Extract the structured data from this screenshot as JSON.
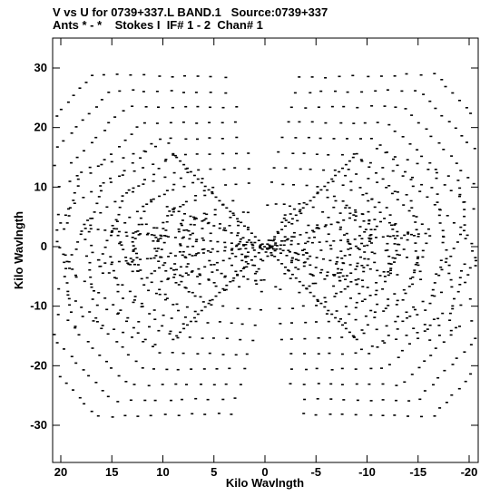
{
  "title_line1": "V vs U for 0739+337.L BAND.1   Source:0739+337",
  "title_line2": "Ants * - *    Stokes I  IF# 1 - 2  Chan# 1",
  "chart_data": {
    "type": "scatter",
    "xlabel": "Kilo Wavlngth",
    "ylabel": "Kilo Wavlngth",
    "xlim": [
      21,
      -21
    ],
    "ylim": [
      -37,
      37
    ],
    "x_reversed": true,
    "xticks": [
      20,
      15,
      10,
      5,
      0,
      -5,
      -10,
      -15,
      -20
    ],
    "yticks": [
      -30,
      -20,
      -10,
      0,
      10,
      20,
      30
    ],
    "grid": false,
    "marker_color": "#000000",
    "arms": [
      {
        "angle_deg": 120,
        "r_max": 33.5,
        "n_tracks": 8,
        "spread": 4.0
      },
      {
        "angle_deg": 60,
        "r_max": 33.5,
        "n_tracks": 8,
        "spread": 4.0
      },
      {
        "angle_deg": 172,
        "r_max": 29.0,
        "n_tracks": 7,
        "spread": 4.5
      },
      {
        "angle_deg": 10,
        "r_max": 32.0,
        "n_tracks": 7,
        "spread": 4.5
      },
      {
        "angle_deg": 150,
        "r_max": 22.0,
        "n_tracks": 6,
        "spread": 3.5
      },
      {
        "angle_deg": 35,
        "r_max": 22.0,
        "n_tracks": 6,
        "spread": 3.5
      },
      {
        "angle_deg": 200,
        "r_max": 26.0,
        "n_tracks": 6,
        "spread": 4.0
      },
      {
        "angle_deg": 300,
        "r_max": 33.0,
        "n_tracks": 8,
        "spread": 4.0
      },
      {
        "angle_deg": 240,
        "r_max": 33.0,
        "n_tracks": 8,
        "spread": 4.0
      },
      {
        "angle_deg": 350,
        "r_max": 29.0,
        "n_tracks": 7,
        "spread": 4.5
      },
      {
        "angle_deg": 330,
        "r_max": 22.0,
        "n_tracks": 6,
        "spread": 3.5
      },
      {
        "angle_deg": 215,
        "r_max": 22.0,
        "n_tracks": 6,
        "spread": 3.5
      }
    ]
  }
}
